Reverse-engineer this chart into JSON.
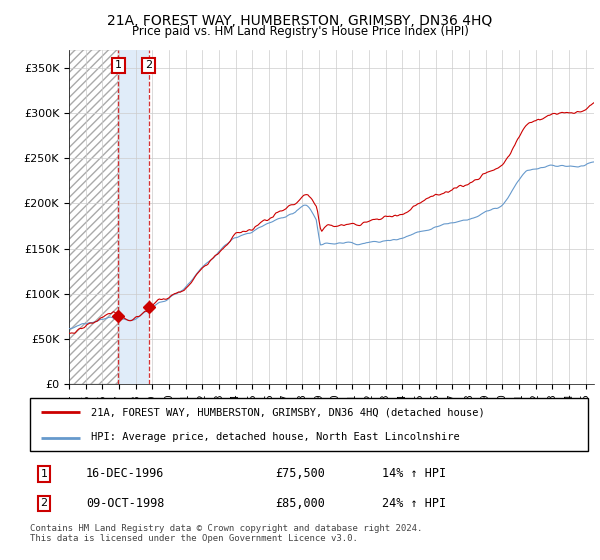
{
  "title_line1": "21A, FOREST WAY, HUMBERSTON, GRIMSBY, DN36 4HQ",
  "title_line2": "Price paid vs. HM Land Registry's House Price Index (HPI)",
  "legend_red": "21A, FOREST WAY, HUMBERSTON, GRIMSBY, DN36 4HQ (detached house)",
  "legend_blue": "HPI: Average price, detached house, North East Lincolnshire",
  "transaction1_date": "16-DEC-1996",
  "transaction1_price": 75500,
  "transaction1_price_str": "£75,500",
  "transaction1_hpi": "14% ↑ HPI",
  "transaction2_date": "09-OCT-1998",
  "transaction2_price": 85000,
  "transaction2_price_str": "£85,000",
  "transaction2_hpi": "24% ↑ HPI",
  "xmin": 1994.0,
  "xmax": 2025.5,
  "ymin": 0,
  "ymax": 370000,
  "yticks": [
    0,
    50000,
    100000,
    150000,
    200000,
    250000,
    300000,
    350000
  ],
  "ytick_labels": [
    "£0",
    "£50K",
    "£100K",
    "£150K",
    "£200K",
    "£250K",
    "£300K",
    "£350K"
  ],
  "red_color": "#cc0000",
  "blue_color": "#6699cc",
  "vline_color": "#cc0000",
  "marker_color": "#cc0000",
  "transaction1_x": 1996.96,
  "transaction2_x": 1998.78,
  "footer": "Contains HM Land Registry data © Crown copyright and database right 2024.\nThis data is licensed under the Open Government Licence v3.0."
}
